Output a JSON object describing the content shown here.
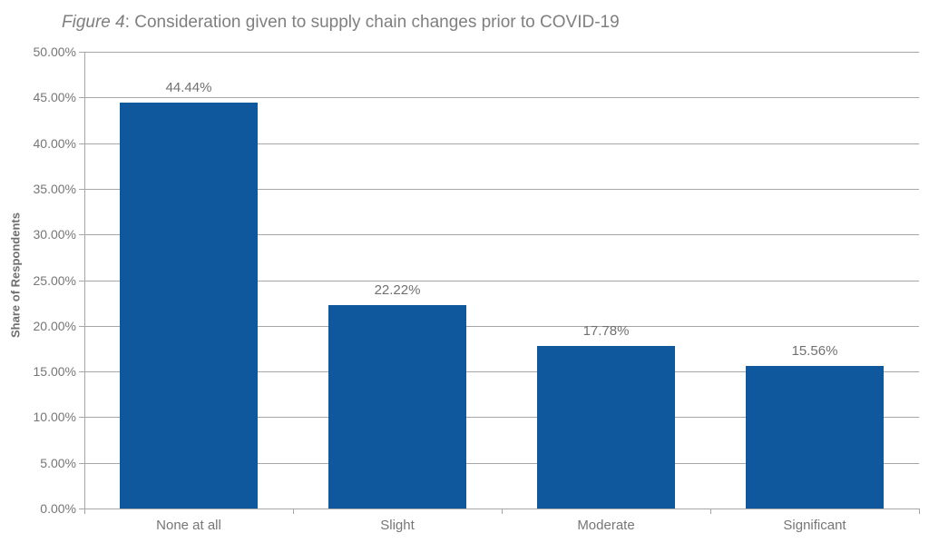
{
  "figure": {
    "title_italic": "Figure 4",
    "title_rest": ": Consideration given to supply chain changes prior to COVID-19"
  },
  "chart_data": {
    "type": "bar",
    "title": "Figure 4: Consideration given to supply chain changes prior to COVID-19",
    "categories": [
      "None at all",
      "Slight",
      "Moderate",
      "Significant"
    ],
    "values": [
      44.44,
      22.22,
      17.78,
      15.56
    ],
    "value_labels": [
      "44.44%",
      "22.22%",
      "17.78%",
      "15.56%"
    ],
    "xlabel": "",
    "ylabel": "Share of Respondents",
    "ylim": [
      0,
      50
    ],
    "ytick_step": 5,
    "ytick_labels": [
      "0.00%",
      "5.00%",
      "10.00%",
      "15.00%",
      "20.00%",
      "25.00%",
      "30.00%",
      "35.00%",
      "40.00%",
      "45.00%",
      "50.00%"
    ],
    "grid": true,
    "legend": "none"
  },
  "colors": {
    "bar": "#0F589E",
    "grid": "#A6A6A6",
    "axis": "#A6A6A6",
    "title_text": "#7F7F7F",
    "tick_text": "#767676",
    "value_text": "#707070",
    "ylabel_text": "#6E6E6E",
    "background": "#FFFFFF"
  }
}
